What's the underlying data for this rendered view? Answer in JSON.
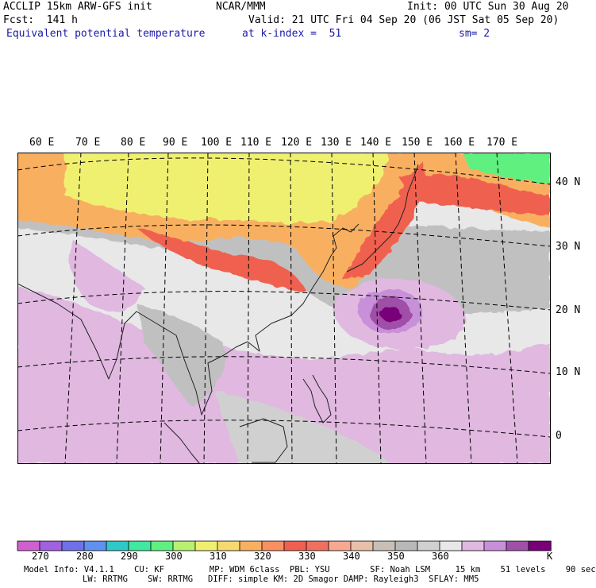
{
  "header": {
    "model": "ACCLIP 15km ARW-GFS init",
    "org": "NCAR/MMM",
    "init": "Init: 00 UTC Sun 30 Aug 20",
    "fcst": "Fcst:  141 h",
    "valid": "Valid: 21 UTC Fri 04 Sep 20 (06 JST Sat 05 Sep 20)",
    "field": "Equivalent potential temperature",
    "level": "at k-index =  51",
    "smooth": "sm= 2"
  },
  "map": {
    "lon_labels": [
      "60 E",
      "70 E",
      "80 E",
      "90 E",
      "100 E",
      "110 E",
      "120 E",
      "130 E",
      "140 E",
      "150 E",
      "160 E",
      "170 E"
    ],
    "lat_labels": [
      "40 N",
      "30 N",
      "20 N",
      "10 N",
      "0"
    ]
  },
  "colorbar": {
    "colors": [
      "#d060d0",
      "#a060e0",
      "#7070e8",
      "#6090f0",
      "#30c8c8",
      "#40e8a0",
      "#60f080",
      "#b8f070",
      "#f0f070",
      "#f8d870",
      "#f8b060",
      "#f89060",
      "#f06050",
      "#f07060",
      "#f8a890",
      "#e8c0a8",
      "#c8c0b8",
      "#b8b8b8",
      "#d0d0d0",
      "#e8e8e8",
      "#e0b8e0",
      "#c890d8",
      "#a050a8",
      "#780078"
    ],
    "ticks": [
      "270",
      "280",
      "290",
      "300",
      "310",
      "320",
      "330",
      "340",
      "350",
      "360"
    ],
    "unit": "K"
  },
  "footer": {
    "line1": "Model Info: V4.1.1    CU: KF         MP: WDM 6class  PBL: YSU        SF: Noah LSM     15 km    51 levels    90 sec",
    "line2": "LW: RRTMG    SW: RRTMG   DIFF: simple KM: 2D Smagor DAMP: Rayleigh3  SFLAY: MM5"
  }
}
